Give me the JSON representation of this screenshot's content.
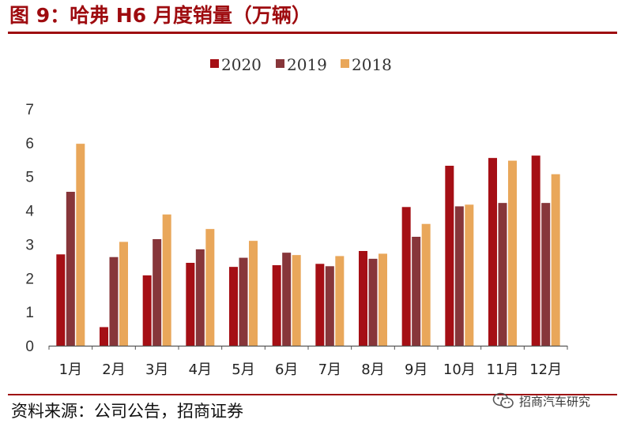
{
  "figure": {
    "title": "图 9：哈弗 H6 月度销量（万辆）",
    "source": "资料来源：公司公告，招商证券",
    "watermark": "招商汽车研究",
    "watermark_icon": "wechat-icon"
  },
  "colors": {
    "accent": "#9e0b0f",
    "series_2020": "#a50f15",
    "series_2019": "#87363a",
    "series_2018": "#e9a75a",
    "axis": "#555555"
  },
  "chart_data": {
    "type": "bar",
    "title": "",
    "xlabel": "",
    "ylabel": "",
    "categories": [
      "1月",
      "2月",
      "3月",
      "4月",
      "5月",
      "6月",
      "7月",
      "8月",
      "9月",
      "10月",
      "11月",
      "12月"
    ],
    "series": [
      {
        "name": "2020",
        "color": "#a50f15",
        "values": [
          2.7,
          0.55,
          2.08,
          2.45,
          2.33,
          2.38,
          2.42,
          2.8,
          4.1,
          5.32,
          5.55,
          5.62
        ]
      },
      {
        "name": "2019",
        "color": "#87363a",
        "values": [
          4.55,
          2.62,
          3.15,
          2.85,
          2.6,
          2.75,
          2.35,
          2.57,
          3.22,
          4.12,
          4.22,
          4.22
        ]
      },
      {
        "name": "2018",
        "color": "#e9a75a",
        "values": [
          5.97,
          3.07,
          3.88,
          3.45,
          3.1,
          2.68,
          2.65,
          2.72,
          3.6,
          4.17,
          5.47,
          5.07
        ]
      }
    ],
    "yticks": [
      "0",
      "1",
      "2",
      "3",
      "4",
      "5",
      "6",
      "7"
    ],
    "ylim": [
      0,
      7
    ],
    "grid": false,
    "legend_position": "top-center"
  }
}
